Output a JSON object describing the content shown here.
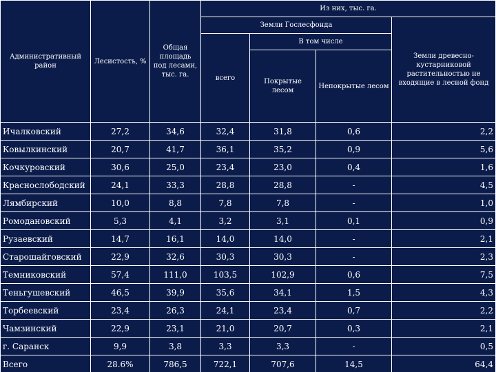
{
  "table": {
    "headers": {
      "district": "Административный район",
      "forest_cover": "Лесистость, %",
      "total_area": "Общая площадь под лесами, тыс. га.",
      "of_them": "Из них, тыс. га.",
      "state_fund": "Земли Гослесфонда",
      "total": "всего",
      "including": "В том числе",
      "covered": "Покрытые лесом",
      "uncovered": "Непокрытые лесом",
      "shrub": "Земли древесно-кустарниковой растительностью не входящие в лесной фонд"
    },
    "rows": [
      {
        "district": "Ичалковский",
        "cover": "27,2",
        "area": "34,6",
        "total": "32,4",
        "covered": "31,8",
        "uncovered": "0,6",
        "shrub": "2,2"
      },
      {
        "district": "Ковылкинский",
        "cover": "20,7",
        "area": "41,7",
        "total": "36,1",
        "covered": "35,2",
        "uncovered": "0,9",
        "shrub": "5,6"
      },
      {
        "district": "Кочкуровский",
        "cover": "30,6",
        "area": "25,0",
        "total": "23,4",
        "covered": "23,0",
        "uncovered": "0,4",
        "shrub": "1,6"
      },
      {
        "district": "Краснослободский",
        "cover": "24,1",
        "area": "33,3",
        "total": "28,8",
        "covered": "28,8",
        "uncovered": "-",
        "shrub": "4,5"
      },
      {
        "district": "Лямбирский",
        "cover": "10,0",
        "area": "8,8",
        "total": "7,8",
        "covered": "7,8",
        "uncovered": "-",
        "shrub": "1,0"
      },
      {
        "district": "Ромодановский",
        "cover": "5,3",
        "area": "4,1",
        "total": "3,2",
        "covered": "3,1",
        "uncovered": "0,1",
        "shrub": "0,9"
      },
      {
        "district": "Рузаевский",
        "cover": "14,7",
        "area": "16,1",
        "total": "14,0",
        "covered": "14,0",
        "uncovered": "-",
        "shrub": "2,1"
      },
      {
        "district": "Старошайговский",
        "cover": "22,9",
        "area": "32,6",
        "total": "30,3",
        "covered": "30,3",
        "uncovered": "-",
        "shrub": "2,3"
      },
      {
        "district": "Темниковский",
        "cover": "57,4",
        "area": "111,0",
        "total": "103,5",
        "covered": "102,9",
        "uncovered": "0,6",
        "shrub": "7,5"
      },
      {
        "district": "Теньгушевский",
        "cover": "46,5",
        "area": "39,9",
        "total": "35,6",
        "covered": "34,1",
        "uncovered": "1,5",
        "shrub": "4,3"
      },
      {
        "district": "Торбеевский",
        "cover": "23,4",
        "area": "26,3",
        "total": "24,1",
        "covered": "23,4",
        "uncovered": "0,7",
        "shrub": "2,2"
      },
      {
        "district": "Чамзинский",
        "cover": "22,9",
        "area": "23,1",
        "total": "21,0",
        "covered": "20,7",
        "uncovered": "0,3",
        "shrub": "2,1"
      },
      {
        "district": "г. Саранск",
        "cover": "9,9",
        "area": "3,8",
        "total": "3,3",
        "covered": "3,3",
        "uncovered": "-",
        "shrub": "0,5"
      },
      {
        "district": "Всего",
        "cover": "28.6%",
        "area": "786,5",
        "total": "722,1",
        "covered": "707,6",
        "uncovered": "14,5",
        "shrub": "64,4"
      }
    ]
  }
}
